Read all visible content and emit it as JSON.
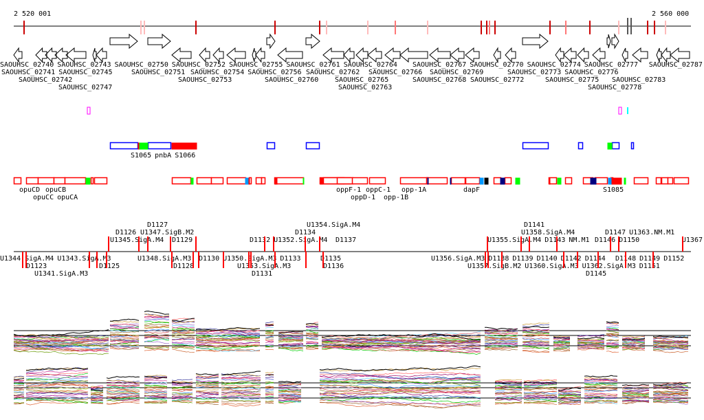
{
  "ruler": {
    "start_label": "2 520 001",
    "end_label": "2 560 000"
  },
  "genes": [
    "SAOUHSC_02740",
    "SAOUHSC_02743",
    "SAOUHSC_02741",
    "SAOUHSC_02745",
    "SAOUHSC_02747",
    "SAOUHSC_02742",
    "SAOUHSC_02750",
    "SAOUHSC_02751",
    "SAOUHSC_02752",
    "SAOUHSC_02754",
    "SAOUHSC_02755",
    "SAOUHSC_02753",
    "SAOUHSC_02756",
    "SAOUHSC_02760",
    "SAOUHSC_02761",
    "SAOUHSC_02762",
    "SAOUHSC_02763",
    "SAOUHSC_02764",
    "SAOUHSC_02765",
    "SAOUHSC_02766",
    "SAOUHSC_02767",
    "SAOUHSC_02768",
    "SAOUHSC_02769",
    "SAOUHSC_02770",
    "SAOUHSC_02772",
    "SAOUHSC_02773",
    "SAOUHSC_02774",
    "SAOUHSC_02775",
    "SAOUHSC_02776",
    "SAOUHSC_02777",
    "SAOUHSC_02778",
    "SAOUHSC_02783",
    "SAOUHSC_02787"
  ],
  "upper_features": [
    "S1065",
    "pnbA",
    "S1066"
  ],
  "operons": [
    "opuCD",
    "opuCC",
    "opuCB",
    "opuCA",
    "oppF-1",
    "oppD-1",
    "oppC-1",
    "opp-1B",
    "opp-1A",
    "dapF",
    "S1085"
  ],
  "transcripts": [
    "U1345.SigA.M4",
    "U1347.SigB.M2",
    "D1126",
    "D1127",
    "D1129",
    "U1352.SigA.M4",
    "U1354.SigA.M4",
    "D1132",
    "D1134",
    "D1137",
    "U1355.SigA.M4",
    "U1358.SigA.M4",
    "D1141",
    "D1143",
    "NM.M1",
    "D1146",
    "D1147",
    "D1150",
    "U1363.NM.M1",
    "U1367",
    "U1344.SigA.M4",
    "D1123",
    "U1341.SigA.M3",
    "U1343.SigA.M3",
    "D1125",
    "U1348.SigA.M3",
    "D1128",
    "D1130",
    "U1350.SigA.M3",
    "D1131",
    "U1353.SigA.M3",
    "D1133",
    "D1135",
    "D1136",
    "U1356.SigA.M3",
    "D1138",
    "D1139",
    "U1357.SigB.M2",
    "D1140",
    "U1360.SigA.M3",
    "D1142",
    "D1144",
    "D1145",
    "U1362.SigA.M3",
    "D1148",
    "D1149",
    "D1151",
    "D1152"
  ],
  "colors": {
    "feature_outline": "#ff0000",
    "upper_outline": "#0000ff",
    "green": "#00ff00",
    "light_blue": "#0099ff",
    "navy": "#000080",
    "axis": "#000000"
  }
}
